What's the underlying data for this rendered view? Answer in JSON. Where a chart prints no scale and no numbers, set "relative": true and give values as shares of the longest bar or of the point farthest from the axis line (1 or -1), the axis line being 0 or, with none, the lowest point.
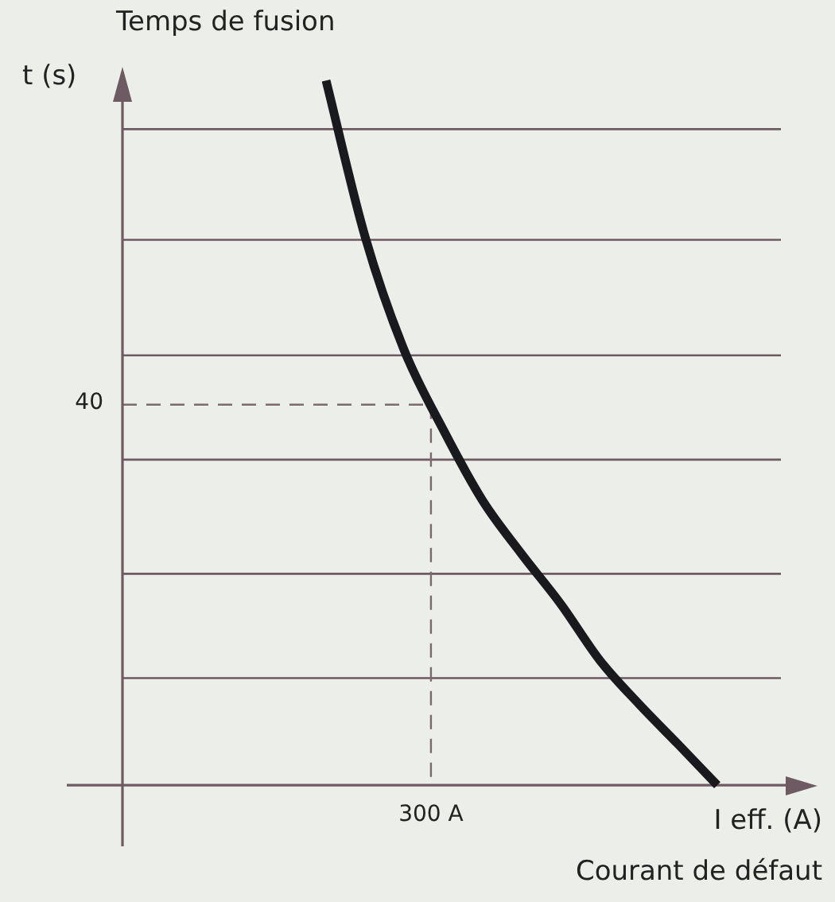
{
  "chart_data": {
    "type": "line",
    "title": "Temps de fusion",
    "xlabel": "I eff. (A)",
    "annotations": [
      "t (s)",
      "40",
      "300 A",
      "Courant de défaut"
    ],
    "relative": true,
    "grid": "y",
    "marker": "none",
    "line_style": "solid",
    "categories": [
      null,
      null,
      null,
      null,
      null,
      null,
      null,
      null,
      null,
      null,
      null
    ],
    "series": [
      {
        "color": "#1a1a1e",
        "values": [
          1,
          0.778,
          0.617,
          0.504,
          0.404,
          0.328,
          0.257,
          0.177,
          0.115,
          0.058,
          0
        ]
      }
    ],
    "ref_lines": [
      {
        "axis": "y",
        "value": 0.54,
        "color": "#7a6a70",
        "line_style": "dashed"
      }
    ]
  }
}
